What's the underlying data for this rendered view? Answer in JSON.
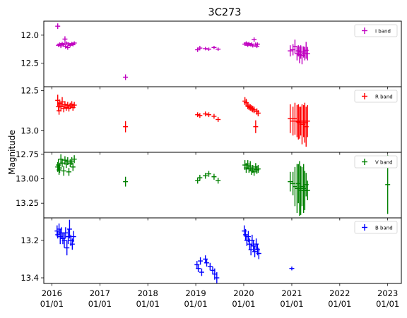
{
  "chart_data": {
    "type": "scatter",
    "title": "3C273",
    "ylabel": "Magnitude",
    "xlim": [
      "2015-11-01",
      "2023-04-15"
    ],
    "xticks": [
      {
        "date": "2016-01-01",
        "label": [
          "2016",
          "01/01"
        ]
      },
      {
        "date": "2017-01-01",
        "label": [
          "2017",
          "01/01"
        ]
      },
      {
        "date": "2018-01-01",
        "label": [
          "2018",
          "01/01"
        ]
      },
      {
        "date": "2019-01-01",
        "label": [
          "2019",
          "01/01"
        ]
      },
      {
        "date": "2020-01-01",
        "label": [
          "2020",
          "01/01"
        ]
      },
      {
        "date": "2021-01-01",
        "label": [
          "2021",
          "01/01"
        ]
      },
      {
        "date": "2022-01-01",
        "label": [
          "2022",
          "01/01"
        ]
      },
      {
        "date": "2023-01-01",
        "label": [
          "2023",
          "01/01"
        ]
      }
    ],
    "y_inverted": true,
    "error_bars": true,
    "legend_placement": "top-right",
    "panels": [
      {
        "name": "I band",
        "color": "#c000c0",
        "ylim": [
          12.92,
          11.75
        ],
        "yticks": [
          12.0,
          12.5
        ],
        "points": [
          [
            "2016-02-15",
            11.84,
            0.05
          ],
          [
            "2016-02-20",
            12.18,
            0.03
          ],
          [
            "2016-03-01",
            12.16,
            0.03
          ],
          [
            "2016-03-10",
            12.19,
            0.04
          ],
          [
            "2016-03-20",
            12.15,
            0.03
          ],
          [
            "2016-04-01",
            12.17,
            0.03
          ],
          [
            "2016-04-10",
            12.07,
            0.05
          ],
          [
            "2016-04-15",
            12.2,
            0.04
          ],
          [
            "2016-04-20",
            12.14,
            0.03
          ],
          [
            "2016-05-01",
            12.22,
            0.04
          ],
          [
            "2016-05-10",
            12.16,
            0.03
          ],
          [
            "2016-05-20",
            12.18,
            0.03
          ],
          [
            "2016-06-01",
            12.15,
            0.03
          ],
          [
            "2016-06-10",
            12.17,
            0.03
          ],
          [
            "2016-06-20",
            12.14,
            0.03
          ],
          [
            "2017-07-15",
            12.75,
            0.05
          ],
          [
            "2019-01-15",
            12.26,
            0.04
          ],
          [
            "2019-02-01",
            12.23,
            0.04
          ],
          [
            "2019-03-15",
            12.24,
            0.03
          ],
          [
            "2019-04-10",
            12.25,
            0.03
          ],
          [
            "2019-05-20",
            12.22,
            0.03
          ],
          [
            "2019-06-20",
            12.25,
            0.03
          ],
          [
            "2020-01-10",
            12.16,
            0.03
          ],
          [
            "2020-01-20",
            12.14,
            0.03
          ],
          [
            "2020-02-01",
            12.18,
            0.03
          ],
          [
            "2020-02-10",
            12.15,
            0.03
          ],
          [
            "2020-02-20",
            12.17,
            0.03
          ],
          [
            "2020-03-01",
            12.16,
            0.03
          ],
          [
            "2020-03-10",
            12.19,
            0.03
          ],
          [
            "2020-03-20",
            12.08,
            0.04
          ],
          [
            "2020-04-01",
            12.16,
            0.03
          ],
          [
            "2020-04-10",
            12.2,
            0.03
          ],
          [
            "2020-04-15",
            12.16,
            0.03
          ],
          [
            "2020-12-20",
            12.28,
            0.1
          ],
          [
            "2021-01-10",
            12.26,
            0.1
          ],
          [
            "2021-01-25",
            12.2,
            0.12
          ],
          [
            "2021-02-10",
            12.33,
            0.12
          ],
          [
            "2021-02-20",
            12.28,
            0.1
          ],
          [
            "2021-03-01",
            12.35,
            0.15
          ],
          [
            "2021-03-10",
            12.3,
            0.12
          ],
          [
            "2021-03-20",
            12.36,
            0.16
          ],
          [
            "2021-04-01",
            12.3,
            0.1
          ],
          [
            "2021-04-10",
            12.33,
            0.12
          ],
          [
            "2021-04-20",
            12.27,
            0.15
          ],
          [
            "2021-05-01",
            12.33,
            0.12
          ]
        ]
      },
      {
        "name": "R band",
        "color": "#ff0000",
        "ylim": [
          13.27,
          12.45
        ],
        "yticks": [
          12.5,
          13.0
        ],
        "points": [
          [
            "2016-02-15",
            12.62,
            0.07
          ],
          [
            "2016-02-20",
            12.7,
            0.06
          ],
          [
            "2016-02-25",
            12.75,
            0.05
          ],
          [
            "2016-03-01",
            12.66,
            0.05
          ],
          [
            "2016-03-10",
            12.7,
            0.06
          ],
          [
            "2016-03-20",
            12.64,
            0.06
          ],
          [
            "2016-04-01",
            12.72,
            0.05
          ],
          [
            "2016-04-10",
            12.67,
            0.04
          ],
          [
            "2016-04-20",
            12.71,
            0.04
          ],
          [
            "2016-05-01",
            12.68,
            0.04
          ],
          [
            "2016-05-10",
            12.72,
            0.04
          ],
          [
            "2016-05-20",
            12.69,
            0.04
          ],
          [
            "2016-06-01",
            12.67,
            0.04
          ],
          [
            "2016-06-10",
            12.71,
            0.04
          ],
          [
            "2016-06-20",
            12.68,
            0.04
          ],
          [
            "2017-07-15",
            12.95,
            0.07
          ],
          [
            "2019-01-15",
            12.8,
            0.03
          ],
          [
            "2019-02-01",
            12.81,
            0.03
          ],
          [
            "2019-03-15",
            12.79,
            0.03
          ],
          [
            "2019-04-10",
            12.8,
            0.03
          ],
          [
            "2019-05-20",
            12.82,
            0.03
          ],
          [
            "2019-06-20",
            12.86,
            0.03
          ],
          [
            "2020-01-10",
            12.63,
            0.05
          ],
          [
            "2020-01-20",
            12.65,
            0.05
          ],
          [
            "2020-02-01",
            12.69,
            0.04
          ],
          [
            "2020-02-10",
            12.7,
            0.04
          ],
          [
            "2020-02-20",
            12.71,
            0.04
          ],
          [
            "2020-03-01",
            12.72,
            0.04
          ],
          [
            "2020-03-10",
            12.73,
            0.04
          ],
          [
            "2020-03-20",
            12.74,
            0.04
          ],
          [
            "2020-04-01",
            12.95,
            0.08
          ],
          [
            "2020-04-10",
            12.76,
            0.04
          ],
          [
            "2020-04-20",
            12.78,
            0.04
          ],
          [
            "2020-12-20",
            12.85,
            0.18
          ],
          [
            "2021-01-10",
            12.88,
            0.18
          ],
          [
            "2021-01-25",
            12.85,
            0.2
          ],
          [
            "2021-02-10",
            12.88,
            0.2
          ],
          [
            "2021-02-20",
            12.89,
            0.22
          ],
          [
            "2021-03-01",
            12.9,
            0.2
          ],
          [
            "2021-03-10",
            12.88,
            0.18
          ],
          [
            "2021-03-20",
            12.92,
            0.25
          ],
          [
            "2021-04-01",
            12.88,
            0.2
          ],
          [
            "2021-04-10",
            12.9,
            0.25
          ],
          [
            "2021-04-20",
            12.95,
            0.25
          ],
          [
            "2021-05-01",
            12.88,
            0.2
          ]
        ]
      },
      {
        "name": "V band",
        "color": "#008000",
        "ylim": [
          13.4,
          12.73
        ],
        "yticks": [
          12.75,
          13.0,
          13.25
        ],
        "points": [
          [
            "2016-02-15",
            12.88,
            0.05
          ],
          [
            "2016-02-20",
            12.86,
            0.06
          ],
          [
            "2016-02-25",
            12.91,
            0.05
          ],
          [
            "2016-03-01",
            12.89,
            0.05
          ],
          [
            "2016-03-10",
            12.8,
            0.05
          ],
          [
            "2016-03-20",
            12.84,
            0.04
          ],
          [
            "2016-04-01",
            12.92,
            0.05
          ],
          [
            "2016-04-10",
            12.81,
            0.04
          ],
          [
            "2016-04-20",
            12.85,
            0.04
          ],
          [
            "2016-05-01",
            12.82,
            0.04
          ],
          [
            "2016-05-10",
            12.93,
            0.04
          ],
          [
            "2016-05-20",
            12.84,
            0.04
          ],
          [
            "2016-06-01",
            12.82,
            0.04
          ],
          [
            "2016-06-10",
            12.88,
            0.04
          ],
          [
            "2016-06-20",
            12.8,
            0.04
          ],
          [
            "2017-07-15",
            13.03,
            0.05
          ],
          [
            "2019-01-15",
            13.02,
            0.03
          ],
          [
            "2019-02-01",
            12.99,
            0.03
          ],
          [
            "2019-03-15",
            12.97,
            0.03
          ],
          [
            "2019-04-10",
            12.95,
            0.03
          ],
          [
            "2019-05-20",
            12.98,
            0.03
          ],
          [
            "2019-06-20",
            13.02,
            0.03
          ],
          [
            "2020-01-10",
            12.86,
            0.05
          ],
          [
            "2020-01-20",
            12.89,
            0.05
          ],
          [
            "2020-02-01",
            12.85,
            0.04
          ],
          [
            "2020-02-10",
            12.9,
            0.04
          ],
          [
            "2020-02-20",
            12.87,
            0.05
          ],
          [
            "2020-03-01",
            12.92,
            0.04
          ],
          [
            "2020-03-10",
            12.9,
            0.04
          ],
          [
            "2020-03-20",
            12.93,
            0.04
          ],
          [
            "2020-04-01",
            12.88,
            0.04
          ],
          [
            "2020-04-10",
            12.91,
            0.04
          ],
          [
            "2020-04-20",
            12.9,
            0.04
          ],
          [
            "2020-12-20",
            13.03,
            0.1
          ],
          [
            "2021-01-10",
            13.05,
            0.12
          ],
          [
            "2021-01-25",
            13.08,
            0.2
          ],
          [
            "2021-02-10",
            13.1,
            0.25
          ],
          [
            "2021-02-20",
            13.05,
            0.2
          ],
          [
            "2021-03-01",
            13.1,
            0.28
          ],
          [
            "2021-03-10",
            13.12,
            0.25
          ],
          [
            "2021-03-20",
            13.08,
            0.2
          ],
          [
            "2021-04-01",
            13.1,
            0.25
          ],
          [
            "2021-04-10",
            13.12,
            0.2
          ],
          [
            "2021-04-20",
            13.06,
            0.12
          ],
          [
            "2021-05-01",
            13.12,
            0.1
          ],
          [
            "2023-01-01",
            13.06,
            0.3
          ]
        ]
      },
      {
        "name": "B band",
        "color": "#0000ff",
        "ylim": [
          13.43,
          13.08
        ],
        "yticks": [
          13.2,
          13.4
        ],
        "points": [
          [
            "2016-02-10",
            13.15,
            0.03
          ],
          [
            "2016-02-15",
            13.17,
            0.02
          ],
          [
            "2016-02-25",
            13.14,
            0.03
          ],
          [
            "2016-03-05",
            13.18,
            0.04
          ],
          [
            "2016-03-15",
            13.16,
            0.03
          ],
          [
            "2016-03-25",
            13.19,
            0.03
          ],
          [
            "2016-04-05",
            13.2,
            0.04
          ],
          [
            "2016-04-15",
            13.16,
            0.03
          ],
          [
            "2016-04-25",
            13.24,
            0.04
          ],
          [
            "2016-05-05",
            13.18,
            0.04
          ],
          [
            "2016-05-15",
            13.14,
            0.05
          ],
          [
            "2016-05-25",
            13.2,
            0.03
          ],
          [
            "2016-06-05",
            13.22,
            0.03
          ],
          [
            "2016-06-15",
            13.18,
            0.03
          ],
          [
            "2019-01-10",
            13.33,
            0.02
          ],
          [
            "2019-01-20",
            13.35,
            0.02
          ],
          [
            "2019-02-05",
            13.31,
            0.02
          ],
          [
            "2019-02-15",
            13.37,
            0.02
          ],
          [
            "2019-03-15",
            13.3,
            0.02
          ],
          [
            "2019-03-25",
            13.32,
            0.02
          ],
          [
            "2019-04-20",
            13.34,
            0.02
          ],
          [
            "2019-05-10",
            13.36,
            0.02
          ],
          [
            "2019-05-25",
            13.38,
            0.03
          ],
          [
            "2019-06-10",
            13.4,
            0.03
          ],
          [
            "2020-01-05",
            13.15,
            0.03
          ],
          [
            "2020-01-15",
            13.17,
            0.03
          ],
          [
            "2020-01-25",
            13.2,
            0.03
          ],
          [
            "2020-02-05",
            13.18,
            0.03
          ],
          [
            "2020-02-15",
            13.22,
            0.03
          ],
          [
            "2020-02-25",
            13.25,
            0.03
          ],
          [
            "2020-03-05",
            13.2,
            0.03
          ],
          [
            "2020-03-15",
            13.23,
            0.03
          ],
          [
            "2020-03-25",
            13.26,
            0.03
          ],
          [
            "2020-04-05",
            13.22,
            0.03
          ],
          [
            "2020-04-15",
            13.25,
            0.03
          ],
          [
            "2020-04-25",
            13.27,
            0.03
          ],
          [
            "2021-01-01",
            13.35,
            0.01
          ]
        ]
      }
    ]
  }
}
